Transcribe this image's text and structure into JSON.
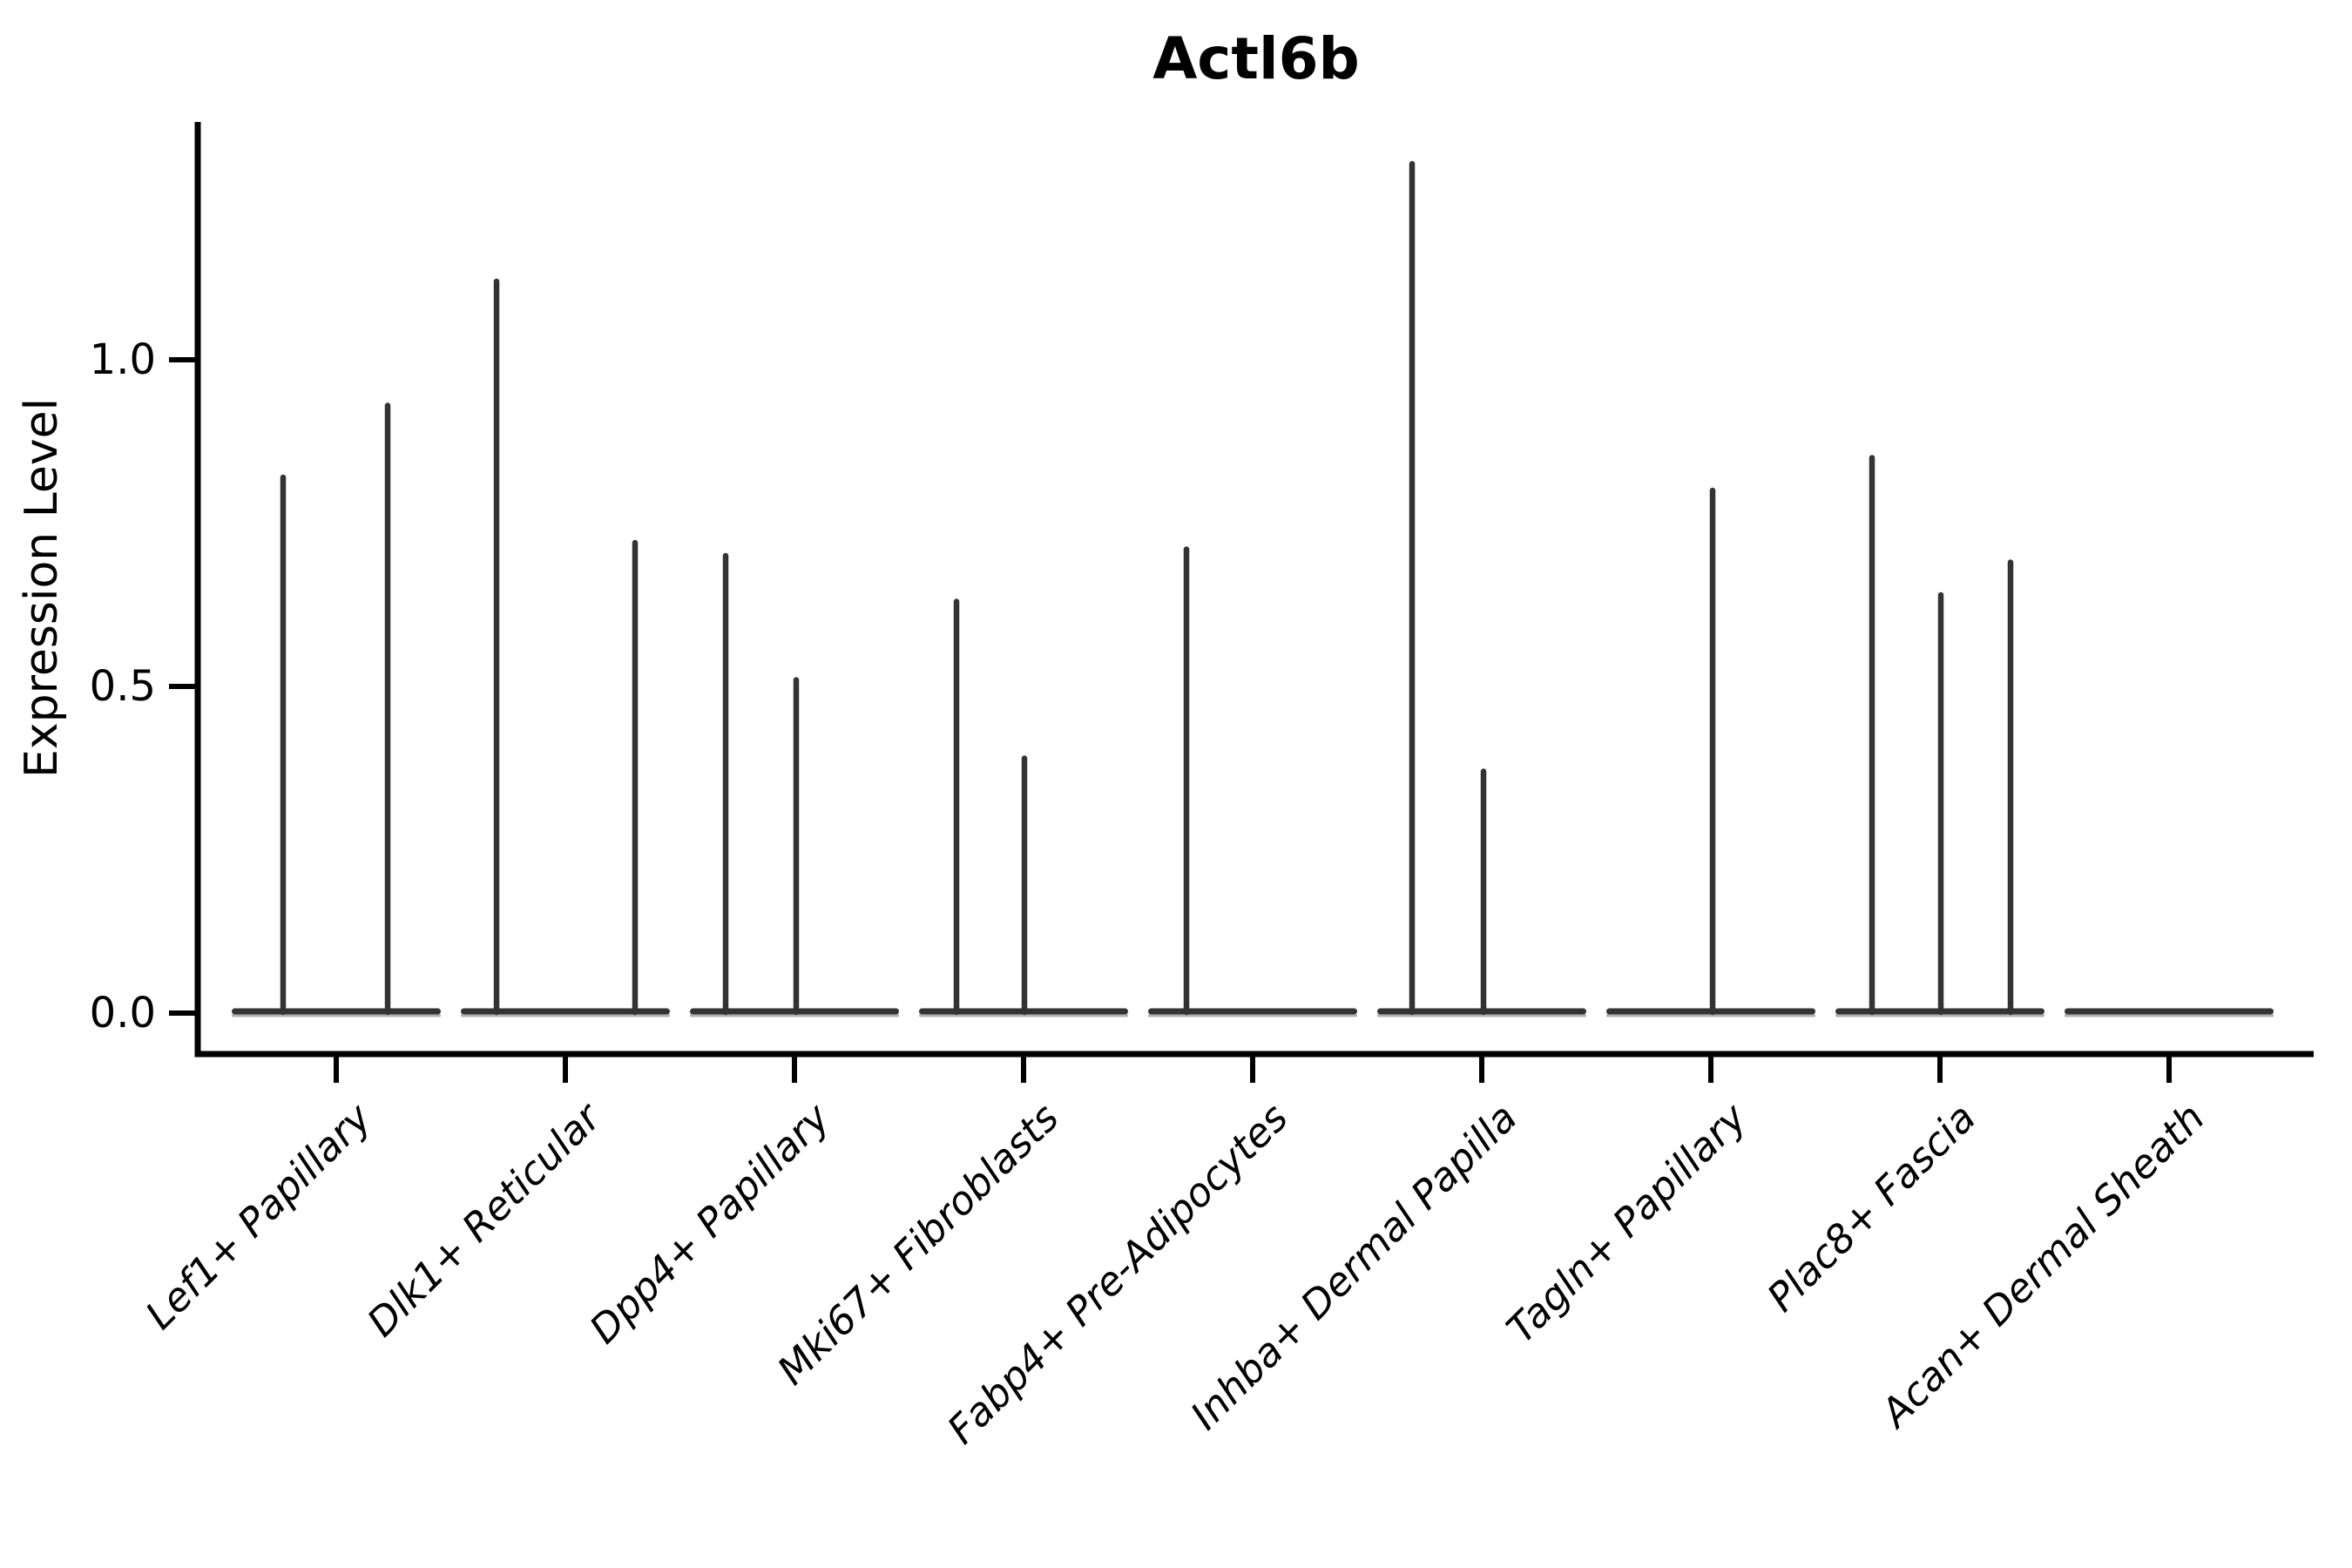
{
  "title": "Actl6b",
  "chart_data": {
    "type": "violin",
    "title": "Actl6b",
    "ylabel": "Expression Level",
    "xlabel": "",
    "legend": "none",
    "grid": false,
    "background": "#ffffff",
    "ylim": [
      -0.065,
      1.365
    ],
    "yticks": [
      {
        "value": 0.0,
        "label": "0.0"
      },
      {
        "value": 0.5,
        "label": "0.5"
      },
      {
        "value": 1.0,
        "label": "1.0"
      }
    ],
    "categories": [
      "Lef1+ Papillary",
      "Dlk1+ Reticular",
      "Dpp4+ Papillary",
      "Mki67+ Fibroblasts",
      "Fabp4+ Pre-Adipocytes",
      "Inhba+ Dermal Papilla",
      "Tagln+ Papillary",
      "Plac8+ Fascia",
      "Acan+ Dermal Sheath"
    ],
    "violins": [
      {
        "category": "Lef1+ Papillary",
        "baseline_value": 0.0,
        "spikes": [
          {
            "dx": -61,
            "value": 0.82
          },
          {
            "dx": 59,
            "value": 0.93
          }
        ]
      },
      {
        "category": "Dlk1+ Reticular",
        "baseline_value": 0.0,
        "spikes": [
          {
            "dx": -79,
            "value": 1.12
          },
          {
            "dx": 80,
            "value": 0.72
          }
        ]
      },
      {
        "category": "Dpp4+ Papillary",
        "baseline_value": 0.0,
        "spikes": [
          {
            "dx": -79,
            "value": 0.7
          },
          {
            "dx": 2,
            "value": 0.51
          }
        ]
      },
      {
        "category": "Mki67+ Fibroblasts",
        "baseline_value": 0.0,
        "spikes": [
          {
            "dx": -77,
            "value": 0.63
          },
          {
            "dx": 1,
            "value": 0.39
          }
        ]
      },
      {
        "category": "Fabp4+ Pre-Adipocytes",
        "baseline_value": 0.0,
        "spikes": [
          {
            "dx": -76,
            "value": 0.71
          }
        ]
      },
      {
        "category": "Inhba+ Dermal Papilla",
        "baseline_value": 0.0,
        "spikes": [
          {
            "dx": -80,
            "value": 1.3
          },
          {
            "dx": 2,
            "value": 0.37
          }
        ]
      },
      {
        "category": "Tagln+ Papillary",
        "baseline_value": 0.0,
        "spikes": [
          {
            "dx": 2,
            "value": 0.8
          }
        ]
      },
      {
        "category": "Plac8+ Fascia",
        "baseline_value": 0.0,
        "spikes": [
          {
            "dx": -78,
            "value": 0.85
          },
          {
            "dx": 1,
            "value": 0.64
          },
          {
            "dx": 81,
            "value": 0.69
          }
        ]
      },
      {
        "category": "Acan+ Dermal Sheath",
        "baseline_value": 0.0,
        "spikes": []
      }
    ],
    "colors": {
      "violin_outline": "#333333",
      "violin_fill_edge": "#b0b0b0",
      "axis": "#000000",
      "text": "#000000",
      "background": "#ffffff"
    }
  }
}
